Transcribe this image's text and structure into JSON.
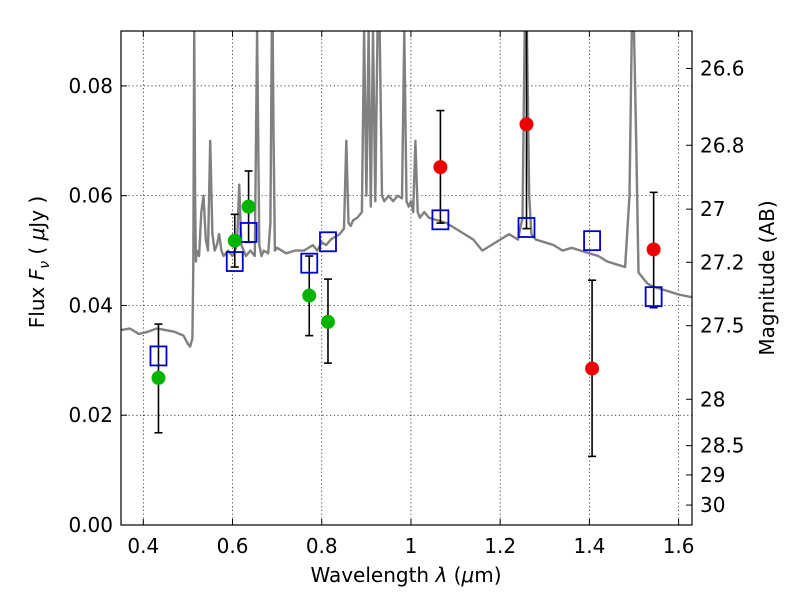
{
  "chart_data": {
    "type": "scatter",
    "title": "",
    "xlabel": "Wavelength  λ (μm)",
    "ylabel": "Flux  F_ν  ( μJy )",
    "ylabel_parts": [
      "Flux ",
      "F",
      "ν",
      " ( ",
      "μ",
      "Jy )"
    ],
    "xlabel_parts": [
      "Wavelength ",
      "λ",
      " (",
      "μ",
      "m)"
    ],
    "y2label": "Magnitude (AB)",
    "xlim": [
      0.35,
      1.63
    ],
    "ylim": [
      0.0,
      0.09
    ],
    "grid": true,
    "x_ticks": [
      {
        "value": 0.4,
        "label": "0.4"
      },
      {
        "value": 0.6,
        "label": "0.6"
      },
      {
        "value": 0.8,
        "label": "0.8"
      },
      {
        "value": 1.0,
        "label": "1"
      },
      {
        "value": 1.2,
        "label": "1.2"
      },
      {
        "value": 1.4,
        "label": "1.4"
      },
      {
        "value": 1.6,
        "label": "1.6"
      }
    ],
    "y_ticks": [
      {
        "value": 0.0,
        "label": "0.00"
      },
      {
        "value": 0.02,
        "label": "0.02"
      },
      {
        "value": 0.04,
        "label": "0.04"
      },
      {
        "value": 0.06,
        "label": "0.06"
      },
      {
        "value": 0.08,
        "label": "0.08"
      }
    ],
    "y2_ticks": [
      {
        "value": 26.6,
        "label": "26.6"
      },
      {
        "value": 26.8,
        "label": "26.8"
      },
      {
        "value": 27.0,
        "label": "27"
      },
      {
        "value": 27.2,
        "label": "27.2"
      },
      {
        "value": 27.5,
        "label": "27.5"
      },
      {
        "value": 28.0,
        "label": "28"
      },
      {
        "value": 28.5,
        "label": "28.5"
      },
      {
        "value": 29.0,
        "label": "29"
      },
      {
        "value": 30.0,
        "label": "30"
      }
    ],
    "colors": {
      "model": "#808080",
      "green": "#00b400",
      "red": "#ee0000",
      "blue": "#0000cc",
      "errorbar": "#000000"
    },
    "series": [
      {
        "name": "model spectrum",
        "type": "line",
        "x": [
          0.35,
          0.37,
          0.39,
          0.41,
          0.43,
          0.45,
          0.47,
          0.49,
          0.5,
          0.505,
          0.51,
          0.512,
          0.514,
          0.516,
          0.518,
          0.52,
          0.525,
          0.53,
          0.535,
          0.54,
          0.545,
          0.55,
          0.555,
          0.56,
          0.565,
          0.57,
          0.575,
          0.58,
          0.59,
          0.6,
          0.61,
          0.615,
          0.62,
          0.63,
          0.64,
          0.65,
          0.655,
          0.66,
          0.665,
          0.67,
          0.68,
          0.685,
          0.688,
          0.69,
          0.692,
          0.695,
          0.7,
          0.72,
          0.74,
          0.76,
          0.78,
          0.79,
          0.8,
          0.81,
          0.82,
          0.83,
          0.84,
          0.85,
          0.855,
          0.86,
          0.865,
          0.87,
          0.88,
          0.89,
          0.895,
          0.9,
          0.905,
          0.91,
          0.915,
          0.92,
          0.925,
          0.93,
          0.935,
          0.94,
          0.95,
          0.96,
          0.97,
          0.98,
          0.985,
          0.99,
          0.995,
          1.0,
          1.005,
          1.01,
          1.015,
          1.02,
          1.03,
          1.04,
          1.06,
          1.08,
          1.1,
          1.12,
          1.14,
          1.16,
          1.18,
          1.2,
          1.22,
          1.24,
          1.25,
          1.255,
          1.26,
          1.265,
          1.27,
          1.28,
          1.3,
          1.32,
          1.34,
          1.36,
          1.38,
          1.4,
          1.42,
          1.44,
          1.46,
          1.48,
          1.49,
          1.495,
          1.5,
          1.505,
          1.51,
          1.52,
          1.53,
          1.54,
          1.56,
          1.58,
          1.6,
          1.63
        ],
        "y": [
          0.0355,
          0.0358,
          0.0348,
          0.0352,
          0.0358,
          0.0355,
          0.0352,
          0.0345,
          0.033,
          0.0325,
          0.034,
          0.047,
          0.09,
          0.06,
          0.048,
          0.05,
          0.049,
          0.057,
          0.06,
          0.052,
          0.05,
          0.07,
          0.053,
          0.05,
          0.051,
          0.053,
          0.05,
          0.049,
          0.05,
          0.049,
          0.051,
          0.062,
          0.051,
          0.049,
          0.05,
          0.049,
          0.09,
          0.051,
          0.049,
          0.05,
          0.0495,
          0.055,
          0.09,
          0.09,
          0.07,
          0.05,
          0.0505,
          0.0495,
          0.05,
          0.05,
          0.051,
          0.05,
          0.0515,
          0.051,
          0.052,
          0.0525,
          0.053,
          0.054,
          0.07,
          0.055,
          0.0545,
          0.0555,
          0.056,
          0.057,
          0.09,
          0.06,
          0.09,
          0.058,
          0.09,
          0.059,
          0.09,
          0.09,
          0.06,
          0.059,
          0.06,
          0.059,
          0.06,
          0.0595,
          0.09,
          0.059,
          0.058,
          0.059,
          0.057,
          0.07,
          0.057,
          0.056,
          0.057,
          0.056,
          0.0555,
          0.055,
          0.054,
          0.053,
          0.052,
          0.05,
          0.051,
          0.052,
          0.053,
          0.052,
          0.056,
          0.09,
          0.09,
          0.06,
          0.053,
          0.052,
          0.0515,
          0.051,
          0.05,
          0.0505,
          0.05,
          0.0495,
          0.049,
          0.048,
          0.0475,
          0.047,
          0.06,
          0.09,
          0.09,
          0.07,
          0.046,
          0.045,
          0.044,
          0.0435,
          0.043,
          0.0425,
          0.042,
          0.0415
        ]
      },
      {
        "name": "green points",
        "type": "scatter",
        "points": [
          {
            "x": 0.434,
            "y": 0.0268,
            "err_lo": 0.0168,
            "err_hi": 0.0366
          },
          {
            "x": 0.605,
            "y": 0.0518,
            "err_lo": 0.047,
            "err_hi": 0.0566
          },
          {
            "x": 0.636,
            "y": 0.058,
            "err_lo": 0.0515,
            "err_hi": 0.0645
          },
          {
            "x": 0.772,
            "y": 0.0418,
            "err_lo": 0.0345,
            "err_hi": 0.049
          },
          {
            "x": 0.814,
            "y": 0.037,
            "err_lo": 0.0295,
            "err_hi": 0.0448
          }
        ]
      },
      {
        "name": "red points",
        "type": "scatter",
        "points": [
          {
            "x": 1.066,
            "y": 0.0652,
            "err_lo": 0.055,
            "err_hi": 0.0755
          },
          {
            "x": 1.259,
            "y": 0.073,
            "err_lo": 0.054,
            "err_hi": 0.092
          },
          {
            "x": 1.406,
            "y": 0.0285,
            "err_lo": 0.0125,
            "err_hi": 0.0446
          },
          {
            "x": 1.544,
            "y": 0.0502,
            "err_lo": 0.0396,
            "err_hi": 0.0606
          }
        ]
      },
      {
        "name": "blue model boxes",
        "type": "scatter",
        "points": [
          {
            "x": 0.434,
            "y": 0.0308
          },
          {
            "x": 0.605,
            "y": 0.048
          },
          {
            "x": 0.636,
            "y": 0.0533
          },
          {
            "x": 0.772,
            "y": 0.0477
          },
          {
            "x": 0.814,
            "y": 0.0516
          },
          {
            "x": 1.066,
            "y": 0.0556
          },
          {
            "x": 1.259,
            "y": 0.0542
          },
          {
            "x": 1.406,
            "y": 0.0518
          },
          {
            "x": 1.544,
            "y": 0.0416
          }
        ]
      }
    ]
  }
}
